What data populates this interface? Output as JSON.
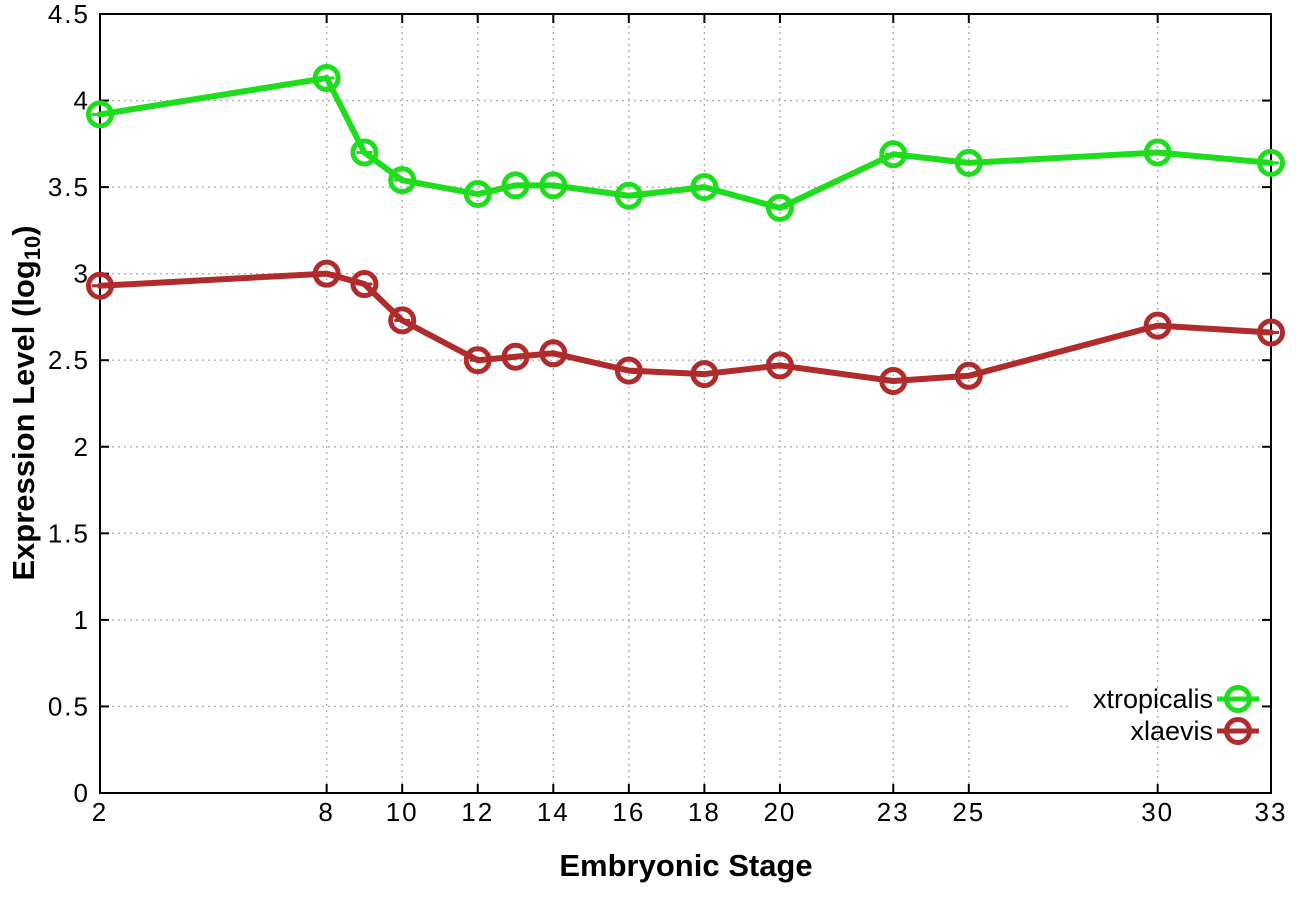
{
  "figure": {
    "background": "#ffffff",
    "axis_color": "#000000",
    "grid_color": "#b0b0b0"
  },
  "chart_data": {
    "type": "line",
    "title": "",
    "xlabel": "Embryonic Stage",
    "ylabel": "Expression Level (log10)",
    "ylabel_parts": {
      "pre": "Expression Level (log",
      "sub": "10",
      "post": ")"
    },
    "xlim": [
      2,
      33
    ],
    "ylim": [
      0,
      4.5
    ],
    "x_ticks": [
      2,
      8,
      10,
      12,
      14,
      16,
      18,
      20,
      23,
      25,
      30,
      33
    ],
    "y_ticks": [
      0,
      0.5,
      1,
      1.5,
      2,
      2.5,
      3,
      3.5,
      4,
      4.5
    ],
    "grid": true,
    "marker": "open-circle-with-error-cap",
    "legend_position": "inside-bottom-right",
    "x": [
      2,
      8,
      9,
      10,
      12,
      13,
      14,
      16,
      18,
      20,
      23,
      25,
      30,
      33
    ],
    "series": [
      {
        "name": "xtropicalis",
        "color": "#1ddd1d",
        "values": [
          3.92,
          4.13,
          3.7,
          3.54,
          3.46,
          3.51,
          3.51,
          3.45,
          3.5,
          3.38,
          3.69,
          3.64,
          3.7,
          3.64
        ]
      },
      {
        "name": "xlaevis",
        "color": "#b02b2b",
        "values": [
          2.93,
          3.0,
          2.94,
          2.73,
          2.5,
          2.52,
          2.54,
          2.44,
          2.42,
          2.47,
          2.38,
          2.41,
          2.7,
          2.66
        ]
      }
    ]
  }
}
